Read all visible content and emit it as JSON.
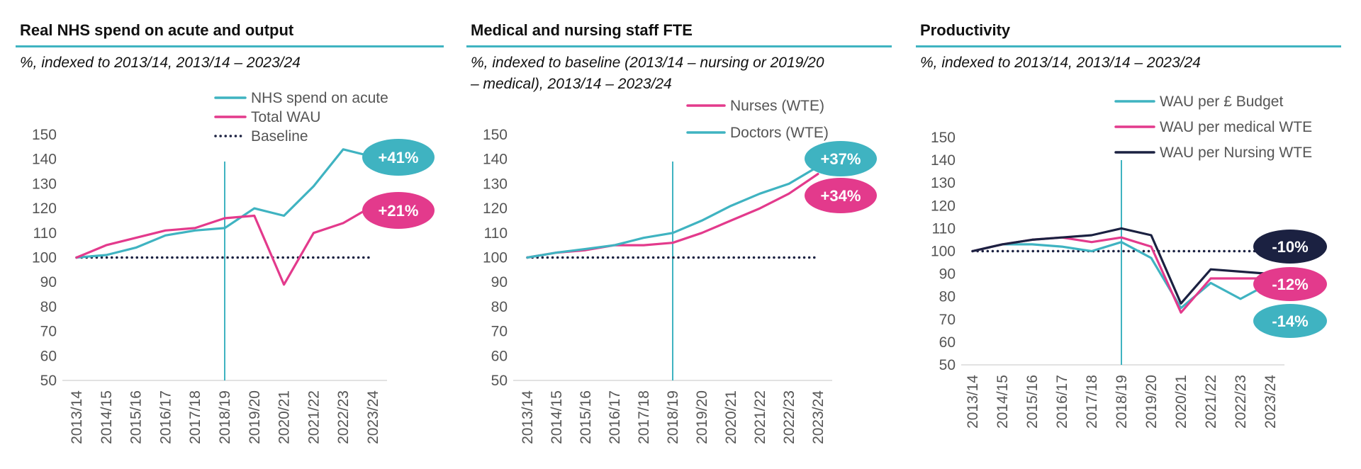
{
  "colors": {
    "teal": "#3fb3c1",
    "pink": "#e33a8c",
    "navy": "#1b2141",
    "baseline": "#1b2141",
    "axis": "#d9d9d9",
    "vline": "#3fb3c1"
  },
  "chart_data": [
    {
      "type": "line",
      "title": "Real NHS spend on acute and output",
      "subtitle": "%, indexed to 2013/14, 2013/14 – 2023/24",
      "categories": [
        "2013/14",
        "2014/15",
        "2015/16",
        "2016/17",
        "2017/18",
        "2018/19",
        "2019/20",
        "2020/21",
        "2021/22",
        "2022/23",
        "2023/24"
      ],
      "ylim": [
        50,
        150
      ],
      "yticks": [
        50,
        60,
        70,
        80,
        90,
        100,
        110,
        120,
        130,
        140,
        150
      ],
      "vline_at": "2018/19",
      "legend_placement": "top-right",
      "series": [
        {
          "name": "NHS spend on acute",
          "color": "#3fb3c1",
          "style": "solid",
          "values": [
            100,
            101,
            104,
            109,
            111,
            112,
            120,
            117,
            129,
            144,
            141
          ]
        },
        {
          "name": "Total WAU",
          "color": "#e33a8c",
          "style": "solid",
          "values": [
            100,
            105,
            108,
            111,
            112,
            116,
            117,
            89,
            110,
            114,
            121
          ]
        },
        {
          "name": "Baseline",
          "color": "#1b2141",
          "style": "dotted",
          "values": [
            100,
            100,
            100,
            100,
            100,
            100,
            100,
            100,
            100,
            100,
            100
          ]
        }
      ],
      "badges": [
        {
          "label": "+41%",
          "color": "#3fb3c1",
          "value": 141
        },
        {
          "label": "+21%",
          "color": "#e33a8c",
          "value": 121
        }
      ]
    },
    {
      "type": "line",
      "title": "Medical and nursing staff FTE",
      "subtitle_lines": [
        "%, indexed to baseline (2013/14 – nursing or  2019/20",
        "– medical), 2013/14 – 2023/24"
      ],
      "categories": [
        "2013/14",
        "2014/15",
        "2015/16",
        "2016/17",
        "2017/18",
        "2018/19",
        "2019/20",
        "2020/21",
        "2021/22",
        "2022/23",
        "2023/24"
      ],
      "ylim": [
        50,
        150
      ],
      "yticks": [
        50,
        60,
        70,
        80,
        90,
        100,
        110,
        120,
        130,
        140,
        150
      ],
      "vline_at": "2018/19",
      "legend_placement": "top-right",
      "series": [
        {
          "name": "Nurses (WTE)",
          "color": "#e33a8c",
          "style": "solid",
          "values": [
            100,
            102,
            103,
            105,
            105,
            106,
            110,
            115,
            120,
            126,
            134
          ]
        },
        {
          "name": "Doctors (WTE)",
          "color": "#3fb3c1",
          "style": "solid",
          "values": [
            100,
            102,
            103.5,
            105,
            108,
            110,
            115,
            121,
            126,
            130,
            137
          ]
        },
        {
          "name": "",
          "color": "#1b2141",
          "style": "dotted",
          "values": [
            100,
            100,
            100,
            100,
            100,
            100,
            100,
            100,
            100,
            100,
            100
          ]
        }
      ],
      "badges": [
        {
          "label": "+37%",
          "color": "#3fb3c1",
          "value": 137
        },
        {
          "label": "+34%",
          "color": "#e33a8c",
          "value": 134
        }
      ]
    },
    {
      "type": "line",
      "title": "Productivity",
      "subtitle": "%, indexed to 2013/14, 2013/14 – 2023/24",
      "categories": [
        "2013/14",
        "2014/15",
        "2015/16",
        "2016/17",
        "2017/18",
        "2018/19",
        "2019/20",
        "2020/21",
        "2021/22",
        "2022/23",
        "2023/24"
      ],
      "ylim": [
        50,
        150
      ],
      "yticks": [
        50,
        60,
        70,
        80,
        90,
        100,
        110,
        120,
        130,
        140,
        150
      ],
      "vline_at": "2018/19",
      "legend_placement": "top-right",
      "series": [
        {
          "name": "WAU per £ Budget",
          "color": "#3fb3c1",
          "style": "solid",
          "values": [
            100,
            103,
            103,
            102,
            100,
            104,
            97,
            75,
            86,
            79,
            86
          ]
        },
        {
          "name": "WAU per medical WTE",
          "color": "#e33a8c",
          "style": "solid",
          "values": [
            100,
            103,
            105,
            106,
            104,
            106,
            102,
            73,
            88,
            88,
            88
          ]
        },
        {
          "name": "WAU per Nursing WTE",
          "color": "#1b2141",
          "style": "solid",
          "values": [
            100,
            103,
            105,
            106,
            107,
            110,
            107,
            77,
            92,
            91,
            90
          ]
        },
        {
          "name": "",
          "color": "#1b2141",
          "style": "dotted",
          "values": [
            100,
            100,
            100,
            100,
            100,
            100,
            100,
            100,
            100,
            100,
            100
          ]
        }
      ],
      "badges": [
        {
          "label": "-10%",
          "color": "#1b2141",
          "value": 90
        },
        {
          "label": "-12%",
          "color": "#e33a8c",
          "value": 88
        },
        {
          "label": "-14%",
          "color": "#3fb3c1",
          "value": 86
        }
      ]
    }
  ]
}
